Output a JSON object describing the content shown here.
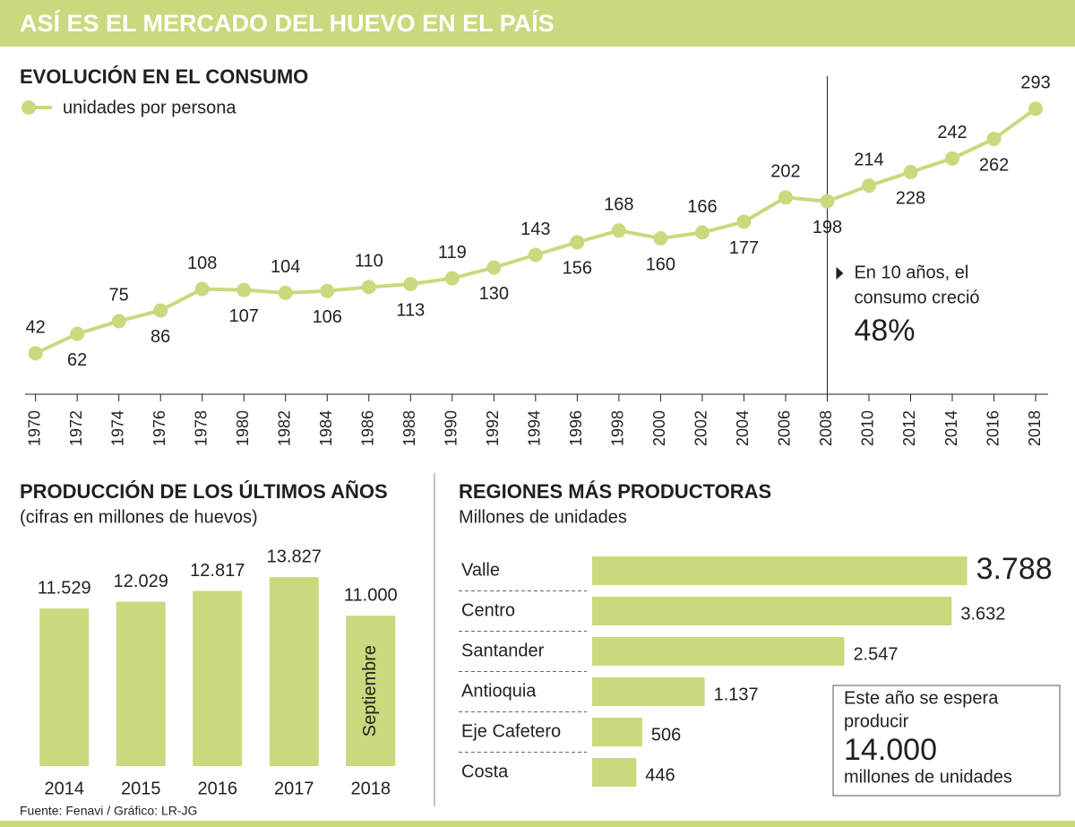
{
  "header": {
    "title": "ASÍ ES EL MERCADO DEL HUEVO EN EL PAÍS"
  },
  "source": "Fuente: Fenavi / Gráfico: LR-JG",
  "chart_data": [
    {
      "type": "line",
      "title": "EVOLUCIÓN EN EL CONSUMO",
      "x": [
        1970,
        1972,
        1974,
        1976,
        1978,
        1980,
        1982,
        1984,
        1986,
        1988,
        1990,
        1992,
        1994,
        1996,
        1998,
        2000,
        2002,
        2004,
        2006,
        2008,
        2010,
        2012,
        2014,
        2016,
        2018
      ],
      "series": [
        {
          "name": "unidades por persona",
          "color": "#c9d97d",
          "values": [
            42,
            62,
            75,
            86,
            108,
            107,
            104,
            106,
            110,
            113,
            119,
            130,
            143,
            156,
            168,
            160,
            166,
            177,
            202,
            198,
            214,
            228,
            242,
            262,
            293
          ]
        }
      ],
      "xlim": [
        1969.5,
        2018.6
      ],
      "xticks": [
        1970,
        1972,
        1974,
        1976,
        1978,
        1980,
        1982,
        1984,
        1986,
        1988,
        1990,
        1992,
        1994,
        1996,
        1998,
        2000,
        2002,
        2004,
        2006,
        2008,
        2010,
        2012,
        2014,
        2016,
        2018
      ],
      "ylim": [
        0,
        320
      ],
      "annotation": {
        "x": 2008,
        "lines": [
          "En 10 años, el",
          "consumo creció"
        ],
        "highlight": "48%"
      }
    },
    {
      "type": "bar",
      "title": "PRODUCCIÓN DE LOS ÚLTIMOS AÑOS",
      "subtitle": "(cifras en millones de huevos)",
      "categories": [
        "2014",
        "2015",
        "2016",
        "2017",
        "2018"
      ],
      "values": [
        11529,
        12029,
        12817,
        13827,
        11000
      ],
      "value_labels": [
        "11.529",
        "12.029",
        "12.817",
        "13.827",
        "11.000"
      ],
      "color": "#c9d97d",
      "ylim": [
        0,
        16000
      ],
      "bar_note": {
        "category": "2018",
        "text": "Septiembre"
      }
    },
    {
      "type": "hbar",
      "title": "REGIONES MÁS PRODUCTORAS",
      "subtitle": "Millones de unidades",
      "categories": [
        "Valle",
        "Centro",
        "Santander",
        "Antioquia",
        "Eje Cafetero",
        "Costa"
      ],
      "values": [
        3788,
        3632,
        2547,
        1137,
        506,
        446
      ],
      "value_labels": [
        "3.788",
        "3.632",
        "2.547",
        "1.137",
        "506",
        "446"
      ],
      "color": "#c9d97d",
      "xlim": [
        0,
        4000
      ],
      "note": {
        "lines": [
          "Este año se espera",
          "producir"
        ],
        "highlight": "14.000",
        "after": "millones de unidades"
      }
    }
  ]
}
